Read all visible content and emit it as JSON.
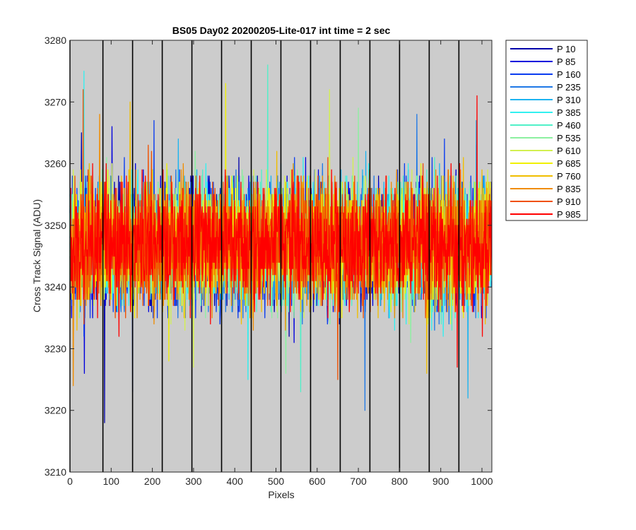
{
  "chart_data": {
    "type": "line",
    "title": "BS05 Day02 20200205-Lite-017 int time = 2 sec",
    "xlabel": "Pixels",
    "ylabel": "Cross Track Signal (ADU)",
    "xlim": [
      0,
      1024
    ],
    "ylim": [
      3210,
      3280
    ],
    "xticks": [
      0,
      100,
      200,
      300,
      400,
      500,
      600,
      700,
      800,
      900,
      1000
    ],
    "yticks": [
      3210,
      3220,
      3230,
      3240,
      3250,
      3260,
      3270,
      3280
    ],
    "background": "#cccccc",
    "grid": false,
    "legend_position": "outside-top-right",
    "vertical_lines_x": [
      0,
      80,
      152,
      224,
      296,
      368,
      440,
      512,
      584,
      656,
      728,
      800,
      872,
      944
    ],
    "noise_model": {
      "center": 3247,
      "typical_range": [
        3232,
        3262
      ],
      "point_count": 1024,
      "note_on_extremes": "approximate per-series extremes read from the plot"
    },
    "series": [
      {
        "name": "P 10",
        "color": "#0000aa",
        "min": 3218,
        "max": 3265,
        "min_x": 84,
        "max_x": 28
      },
      {
        "name": "P 85",
        "color": "#0000dd",
        "min": 3226,
        "max": 3266,
        "min_x": 35,
        "max_x": 102
      },
      {
        "name": "P 160",
        "color": "#0a3cf0",
        "min": 3223,
        "max": 3267,
        "min_x": 152,
        "max_x": 204
      },
      {
        "name": "P 235",
        "color": "#1e78e6",
        "min": 3220,
        "max": 3268,
        "min_x": 716,
        "max_x": 842
      },
      {
        "name": "P 310",
        "color": "#1eb4f0",
        "min": 3222,
        "max": 3267,
        "min_x": 966,
        "max_x": 986
      },
      {
        "name": "P 385",
        "color": "#32f0f0",
        "min": 3225,
        "max": 3275,
        "min_x": 432,
        "max_x": 34
      },
      {
        "name": "P 460",
        "color": "#50f0c8",
        "min": 3223,
        "max": 3276,
        "min_x": 560,
        "max_x": 480
      },
      {
        "name": "P 535",
        "color": "#8cf0a0",
        "min": 3226,
        "max": 3269,
        "min_x": 524,
        "max_x": 700
      },
      {
        "name": "P 610",
        "color": "#d2f050",
        "min": 3227,
        "max": 3272,
        "min_x": 300,
        "max_x": 630
      },
      {
        "name": "P 685",
        "color": "#f0f000",
        "min": 3228,
        "max": 3273,
        "min_x": 240,
        "max_x": 378
      },
      {
        "name": "P 760",
        "color": "#f0be00",
        "min": 3226,
        "max": 3270,
        "min_x": 866,
        "max_x": 146
      },
      {
        "name": "P 835",
        "color": "#f08c00",
        "min": 3224,
        "max": 3268,
        "min_x": 8,
        "max_x": 72
      },
      {
        "name": "P 910",
        "color": "#f05000",
        "min": 3225,
        "max": 3272,
        "min_x": 650,
        "max_x": 32
      },
      {
        "name": "P 985",
        "color": "#ff0000",
        "min": 3227,
        "max": 3271,
        "min_x": 940,
        "max_x": 988
      }
    ]
  }
}
